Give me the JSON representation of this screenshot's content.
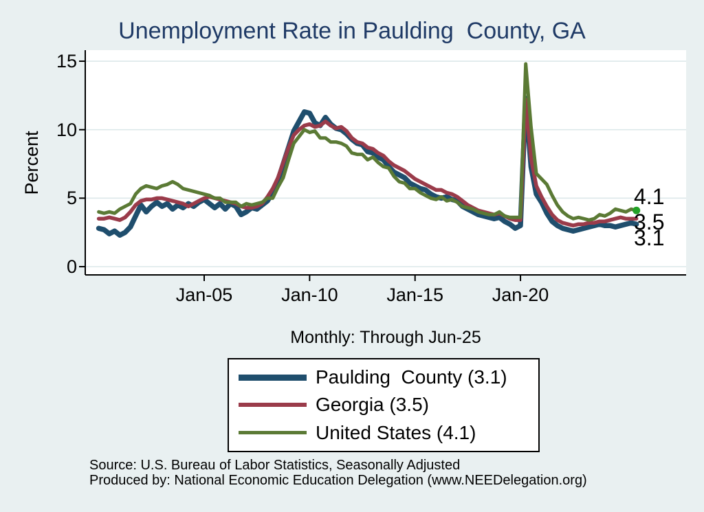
{
  "chart_data": {
    "type": "line",
    "title": "Unemployment Rate in Paulding  County, GA",
    "ylabel": "Percent",
    "xlabel": "Monthly: Through Jun-25",
    "ylim": [
      0,
      15.5
    ],
    "xlim": [
      1999.8,
      2025.9
    ],
    "grid": true,
    "legend_position": "bottom",
    "y_ticks": [
      0,
      5,
      10,
      15
    ],
    "x_ticks": [
      {
        "label": "Jan-05",
        "x": 2005
      },
      {
        "label": "Jan-10",
        "x": 2010
      },
      {
        "label": "Jan-15",
        "x": 2015
      },
      {
        "label": "Jan-20",
        "x": 2020
      }
    ],
    "x": [
      2000.0,
      2000.25,
      2000.5,
      2000.75,
      2001.0,
      2001.25,
      2001.5,
      2001.75,
      2002.0,
      2002.25,
      2002.5,
      2002.75,
      2003.0,
      2003.25,
      2003.5,
      2003.75,
      2004.0,
      2004.25,
      2004.5,
      2004.75,
      2005.0,
      2005.25,
      2005.5,
      2005.75,
      2006.0,
      2006.25,
      2006.5,
      2006.75,
      2007.0,
      2007.25,
      2007.5,
      2007.75,
      2008.0,
      2008.25,
      2008.5,
      2008.75,
      2009.0,
      2009.25,
      2009.5,
      2009.75,
      2010.0,
      2010.25,
      2010.5,
      2010.75,
      2011.0,
      2011.25,
      2011.5,
      2011.75,
      2012.0,
      2012.25,
      2012.5,
      2012.75,
      2013.0,
      2013.25,
      2013.5,
      2013.75,
      2014.0,
      2014.25,
      2014.5,
      2014.75,
      2015.0,
      2015.25,
      2015.5,
      2015.75,
      2016.0,
      2016.25,
      2016.5,
      2016.75,
      2017.0,
      2017.25,
      2017.5,
      2017.75,
      2018.0,
      2018.25,
      2018.5,
      2018.75,
      2019.0,
      2019.25,
      2019.5,
      2019.75,
      2020.0,
      2020.25,
      2020.5,
      2020.75,
      2021.0,
      2021.25,
      2021.5,
      2021.75,
      2022.0,
      2022.25,
      2022.5,
      2022.75,
      2023.0,
      2023.25,
      2023.5,
      2023.75,
      2024.0,
      2024.25,
      2024.5,
      2024.75,
      2025.0,
      2025.25,
      2025.5
    ],
    "series": [
      {
        "id": "paulding-county",
        "name": "Paulding  County (3.1)",
        "color": "#1f4e6d",
        "width": 7.5,
        "end_dot": false,
        "latest_value": 3.1,
        "values": [
          2.8,
          2.7,
          2.4,
          2.6,
          2.3,
          2.5,
          2.9,
          3.7,
          4.5,
          4.0,
          4.4,
          4.7,
          4.4,
          4.6,
          4.2,
          4.5,
          4.3,
          4.6,
          4.4,
          4.7,
          4.9,
          4.6,
          4.3,
          4.6,
          4.2,
          4.6,
          4.4,
          3.8,
          4.0,
          4.3,
          4.2,
          4.5,
          4.8,
          5.4,
          6.3,
          7.5,
          8.7,
          9.9,
          10.6,
          11.3,
          11.2,
          10.5,
          10.3,
          10.9,
          10.4,
          10.1,
          10.0,
          9.7,
          9.3,
          9.0,
          8.9,
          8.4,
          8.3,
          8.0,
          7.8,
          7.3,
          6.9,
          6.7,
          6.5,
          6.1,
          5.9,
          5.7,
          5.6,
          5.3,
          5.1,
          5.0,
          5.1,
          4.9,
          4.8,
          4.4,
          4.2,
          4.0,
          3.8,
          3.7,
          3.6,
          3.5,
          3.6,
          3.3,
          3.1,
          2.8,
          3.0,
          12.3,
          7.3,
          5.3,
          4.7,
          3.9,
          3.3,
          3.0,
          2.8,
          2.7,
          2.6,
          2.7,
          2.8,
          2.9,
          3.0,
          3.1,
          3.0,
          3.0,
          2.9,
          3.0,
          3.1,
          3.2,
          3.1
        ]
      },
      {
        "id": "georgia",
        "name": "Georgia (3.5)",
        "color": "#9a3b4a",
        "width": 5.5,
        "end_dot": false,
        "latest_value": 3.5,
        "values": [
          3.5,
          3.5,
          3.6,
          3.5,
          3.4,
          3.6,
          4.0,
          4.5,
          4.8,
          4.9,
          4.9,
          5.0,
          5.0,
          4.9,
          4.8,
          4.7,
          4.6,
          4.4,
          4.6,
          4.8,
          5.0,
          5.1,
          5.0,
          4.9,
          4.8,
          4.7,
          4.6,
          4.4,
          4.3,
          4.3,
          4.4,
          4.6,
          5.1,
          5.7,
          6.5,
          7.6,
          8.7,
          9.6,
          10.0,
          10.3,
          10.4,
          10.2,
          10.3,
          10.6,
          10.3,
          10.1,
          10.2,
          9.9,
          9.4,
          9.1,
          9.0,
          8.7,
          8.6,
          8.3,
          8.1,
          7.7,
          7.4,
          7.2,
          7.0,
          6.7,
          6.4,
          6.2,
          6.0,
          5.8,
          5.6,
          5.6,
          5.4,
          5.3,
          5.1,
          4.8,
          4.5,
          4.3,
          4.1,
          4.0,
          3.9,
          3.8,
          3.9,
          3.7,
          3.5,
          3.4,
          3.4,
          12.2,
          7.9,
          5.9,
          5.1,
          4.4,
          3.8,
          3.4,
          3.2,
          3.1,
          3.0,
          3.1,
          3.1,
          3.2,
          3.2,
          3.3,
          3.3,
          3.4,
          3.5,
          3.6,
          3.5,
          3.5,
          3.5
        ]
      },
      {
        "id": "united-states",
        "name": "United States (4.1)",
        "color": "#5b7a35",
        "width": 5,
        "end_dot": true,
        "end_dot_color": "#23a127",
        "latest_value": 4.1,
        "values": [
          4.0,
          3.9,
          4.0,
          3.9,
          4.2,
          4.4,
          4.6,
          5.3,
          5.7,
          5.9,
          5.8,
          5.7,
          5.9,
          6.0,
          6.2,
          6.0,
          5.7,
          5.6,
          5.5,
          5.4,
          5.3,
          5.2,
          5.0,
          5.0,
          4.7,
          4.7,
          4.7,
          4.4,
          4.6,
          4.5,
          4.6,
          4.7,
          5.0,
          5.0,
          5.8,
          6.5,
          7.8,
          9.0,
          9.5,
          10.0,
          9.8,
          9.9,
          9.4,
          9.4,
          9.1,
          9.1,
          9.0,
          8.8,
          8.3,
          8.2,
          8.2,
          7.8,
          8.0,
          7.6,
          7.3,
          7.2,
          6.6,
          6.2,
          6.1,
          5.7,
          5.7,
          5.4,
          5.2,
          5.0,
          4.9,
          5.1,
          4.8,
          4.9,
          4.7,
          4.4,
          4.3,
          4.2,
          4.0,
          3.9,
          3.8,
          3.8,
          4.0,
          3.7,
          3.6,
          3.6,
          3.6,
          14.8,
          10.2,
          6.8,
          6.4,
          6.0,
          5.2,
          4.5,
          4.0,
          3.7,
          3.5,
          3.6,
          3.5,
          3.4,
          3.5,
          3.8,
          3.7,
          3.9,
          4.2,
          4.1,
          4.0,
          4.2,
          4.1
        ]
      }
    ],
    "end_labels": [
      {
        "text": "4.1"
      },
      {
        "text": "3.5"
      },
      {
        "text": "3.1"
      }
    ]
  },
  "legend": {
    "items": [
      {
        "label": "Paulding  County (3.1)",
        "color": "#1f4e6d",
        "thickness": 9
      },
      {
        "label": "Georgia (3.5)",
        "color": "#9a3b4a",
        "thickness": 6
      },
      {
        "label": "United States (4.1)",
        "color": "#5b7a35",
        "thickness": 5
      }
    ]
  },
  "footer": {
    "source": "Source: U.S. Bureau of Labor Statistics, Seasonally Adjusted",
    "produced_by": "Produced by: National Economic Education Delegation (www.NEEDelegation.org)"
  },
  "colors": {
    "background": "#e9f0f1",
    "plot_background": "#ffffff",
    "gridline": "#dce8ea",
    "axis": "#000000",
    "title": "#1f3a66"
  }
}
